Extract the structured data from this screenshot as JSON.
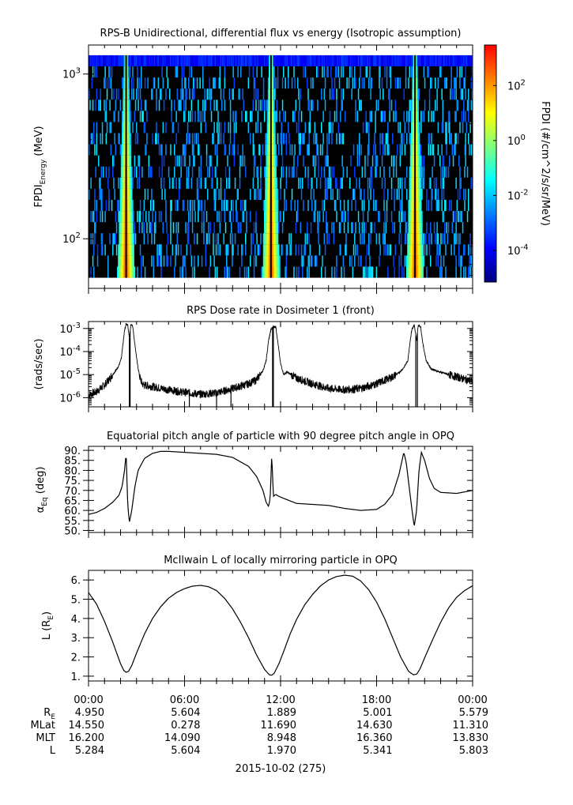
{
  "chart_data": [
    {
      "type": "heatmap",
      "title": "RPS-B  Unidirectional, differential flux vs energy (Isotropic assumption)",
      "ylabel": "FPDI",
      "ylabel_sub": "Energy",
      "ylabel_unit": " (MeV)",
      "yscale": "log",
      "ylim": [
        50,
        1500
      ],
      "yticks": [
        {
          "value": 100,
          "base": "10",
          "exp": "2"
        },
        {
          "value": 1000,
          "base": "10",
          "exp": "3"
        }
      ],
      "energy_range": [
        58,
        1300
      ],
      "time_range_hours": [
        0,
        24
      ],
      "ridge_times_hours": [
        2.35,
        11.4,
        20.4
      ],
      "colorbar": {
        "label": "FPDI (#/cm^2/s/sr/MeV)",
        "scale": "log",
        "range": [
          7e-06,
          3000
        ],
        "ticks": [
          {
            "value": 0.0001,
            "label": "10",
            "exp": "-4"
          },
          {
            "value": 0.01,
            "label": "10",
            "exp": "-2"
          },
          {
            "value": 1,
            "label": "10",
            "exp": "0"
          },
          {
            "value": 100,
            "label": "10",
            "exp": "2"
          }
        ],
        "colors": [
          "#00007f",
          "#0000ff",
          "#007fff",
          "#00ffff",
          "#7fff7f",
          "#ffff00",
          "#ff7f00",
          "#ff0000"
        ]
      },
      "background": "#000000"
    },
    {
      "type": "line",
      "title": "RPS  Dose rate in Dosimeter 1 (front)",
      "ylabel": "(rads/sec)",
      "yscale": "log",
      "ylim": [
        4e-07,
        0.002
      ],
      "yticks": [
        {
          "value": 0.001,
          "base": "10",
          "exp": "-3"
        },
        {
          "value": 0.0001,
          "base": "10",
          "exp": "-4"
        },
        {
          "value": 1e-05,
          "base": "10",
          "exp": "-5"
        },
        {
          "value": 1e-06,
          "base": "10",
          "exp": "-6"
        }
      ],
      "x_hours": [
        0,
        0.5,
        1,
        1.4,
        1.7,
        1.9,
        2.05,
        2.15,
        2.25,
        2.35,
        2.45,
        2.55,
        2.65,
        2.75,
        2.9,
        3.05,
        3.2,
        3.35,
        3.5,
        4,
        5,
        6,
        7,
        8,
        9,
        10,
        10.5,
        10.9,
        11.1,
        11.25,
        11.4,
        11.55,
        11.7,
        11.85,
        12.0,
        12.2,
        12.4,
        13,
        14,
        15,
        16,
        17,
        18,
        19,
        19.4,
        19.7,
        19.95,
        20.1,
        20.2,
        20.35,
        20.5,
        20.6,
        20.75,
        20.9,
        21.1,
        21.4,
        21.8,
        22.5,
        23.3,
        24
      ],
      "y": [
        1.3e-06,
        1.8e-06,
        3.5e-06,
        8e-06,
        1.5e-05,
        2.5e-05,
        5e-05,
        0.0002,
        0.0008,
        0.0016,
        0.0014,
        0.0004,
        0.0015,
        0.0014,
        0.0002,
        3e-05,
        8e-06,
        4e-06,
        3.5e-06,
        3e-06,
        2.2e-06,
        1.7e-06,
        1.4e-06,
        1.6e-06,
        2.5e-06,
        4e-06,
        6e-06,
        1.5e-05,
        4e-05,
        0.0003,
        0.0009,
        0.0012,
        0.0012,
        0.0002,
        3e-05,
        1e-05,
        1.3e-05,
        7e-06,
        4e-06,
        2.5e-06,
        2.2e-06,
        2.5e-06,
        4e-06,
        8e-06,
        1.2e-05,
        2e-05,
        4e-05,
        0.0003,
        0.0009,
        0.0014,
        0.0003,
        0.0014,
        0.0012,
        0.0002,
        4e-05,
        1.8e-05,
        1.4e-05,
        1e-05,
        7e-06,
        5e-06
      ],
      "dropouts_hours": [
        2.55,
        2.6,
        11.5,
        11.55,
        20.45,
        20.55,
        6.3,
        8.0,
        8.9
      ],
      "line_color": "#000000"
    },
    {
      "type": "line",
      "title": "Equatorial pitch angle of particle with 90 degree pitch angle in OPQ",
      "ylabel": "α",
      "ylabel_sub": "Eq",
      "ylabel_unit": " (deg)",
      "ylim": [
        49,
        92
      ],
      "yticks": [
        {
          "value": 50,
          "label": "50."
        },
        {
          "value": 55,
          "label": "55."
        },
        {
          "value": 60,
          "label": "60."
        },
        {
          "value": 65,
          "label": "65."
        },
        {
          "value": 70,
          "label": "70."
        },
        {
          "value": 75,
          "label": "75."
        },
        {
          "value": 80,
          "label": "80."
        },
        {
          "value": 85,
          "label": "85."
        },
        {
          "value": 90,
          "label": "90."
        }
      ],
      "x_hours": [
        0,
        0.5,
        1,
        1.5,
        1.9,
        2.1,
        2.25,
        2.35,
        2.45,
        2.55,
        2.7,
        2.9,
        3.1,
        3.5,
        4,
        4.5,
        5,
        6,
        7,
        8,
        9,
        10,
        10.5,
        10.9,
        11.1,
        11.25,
        11.35,
        11.45,
        11.55,
        11.7,
        11.9,
        12.2,
        13,
        14,
        15,
        16,
        17,
        18,
        18.5,
        19,
        19.4,
        19.7,
        19.85,
        20.0,
        20.2,
        20.35,
        20.5,
        20.65,
        20.8,
        21,
        21.3,
        21.6,
        22,
        23,
        24
      ],
      "y": [
        58,
        59,
        61,
        64,
        67.5,
        72,
        80,
        88.5,
        63,
        54,
        60,
        72,
        80,
        86,
        88.5,
        89.5,
        89.5,
        89,
        88.5,
        88,
        86.5,
        82,
        77,
        70,
        64,
        62,
        66,
        88,
        67,
        68,
        67,
        66,
        63.5,
        63,
        62.5,
        61,
        60,
        60.5,
        63,
        68,
        78,
        89,
        84,
        74,
        61,
        52,
        60,
        80,
        89,
        85,
        76,
        71,
        69,
        68.5,
        70
      ],
      "line_color": "#000000"
    },
    {
      "type": "line",
      "title": "McIlwain L of locally mirroring particle in OPQ",
      "ylabel": "L (R",
      "ylabel_sub": "E",
      "ylabel_unit": ")",
      "ylim": [
        0.75,
        6.5
      ],
      "yticks": [
        {
          "value": 1,
          "label": "1."
        },
        {
          "value": 2,
          "label": "2."
        },
        {
          "value": 3,
          "label": "3."
        },
        {
          "value": 4,
          "label": "4."
        },
        {
          "value": 5,
          "label": "5."
        },
        {
          "value": 6,
          "label": "6."
        }
      ],
      "x_hours": [
        0,
        0.5,
        1,
        1.5,
        2.0,
        2.2,
        2.35,
        2.5,
        2.7,
        3.0,
        3.5,
        4,
        4.5,
        5,
        5.5,
        6,
        6.5,
        7,
        7.5,
        8,
        8.5,
        9,
        9.5,
        10,
        10.5,
        11,
        11.3,
        11.45,
        11.6,
        11.9,
        12.2,
        12.6,
        13,
        13.5,
        14,
        14.5,
        15,
        15.5,
        16,
        16.5,
        17,
        17.5,
        18,
        18.5,
        19,
        19.5,
        20,
        20.3,
        20.5,
        20.7,
        21,
        21.5,
        22,
        22.5,
        23,
        23.5,
        24
      ],
      "y": [
        5.35,
        4.75,
        3.85,
        2.8,
        1.65,
        1.3,
        1.2,
        1.25,
        1.55,
        2.2,
        3.2,
        4.0,
        4.6,
        5.05,
        5.35,
        5.55,
        5.68,
        5.72,
        5.65,
        5.45,
        5.05,
        4.5,
        3.8,
        3.0,
        2.1,
        1.35,
        1.07,
        1.05,
        1.15,
        1.65,
        2.3,
        3.2,
        3.95,
        4.7,
        5.25,
        5.7,
        6.0,
        6.18,
        6.25,
        6.2,
        5.95,
        5.5,
        4.85,
        4.0,
        3.0,
        2.0,
        1.25,
        1.07,
        1.1,
        1.35,
        1.95,
        2.9,
        3.8,
        4.55,
        5.1,
        5.45,
        5.7
      ],
      "line_color": "#000000"
    }
  ],
  "x_axis": {
    "tick_labels": [
      "00:00",
      "06:00",
      "12:00",
      "18:00",
      "00:00"
    ],
    "xlabel": "2015-10-02 (275)",
    "ephemeris": [
      {
        "name": "R",
        "name_sub": "E",
        "values": [
          "4.950",
          "5.604",
          "1.889",
          "5.001",
          "5.579"
        ]
      },
      {
        "name": "MLat",
        "name_sub": "",
        "values": [
          "14.550",
          "0.278",
          "11.690",
          "14.630",
          "11.310"
        ]
      },
      {
        "name": "MLT",
        "name_sub": "",
        "values": [
          "16.200",
          "14.090",
          "8.948",
          "16.360",
          "13.830"
        ]
      },
      {
        "name": "L",
        "name_sub": "",
        "values": [
          "5.284",
          "5.604",
          "1.970",
          "5.341",
          "5.803"
        ]
      }
    ]
  }
}
